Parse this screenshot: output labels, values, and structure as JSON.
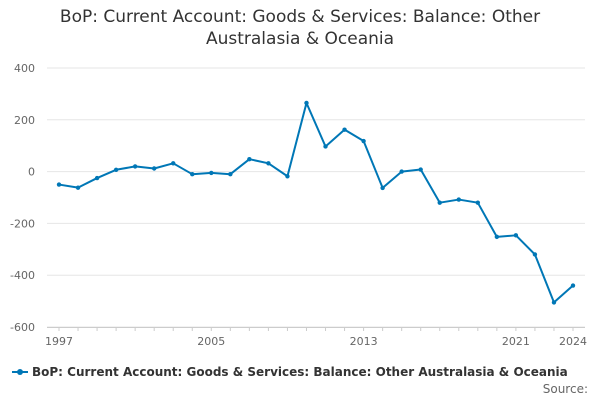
{
  "chart_data": {
    "type": "line",
    "title_lines": [
      "BoP: Current Account: Goods & Services: Balance: Other",
      "Australasia & Oceania"
    ],
    "x": [
      1997,
      1998,
      1999,
      2000,
      2001,
      2002,
      2003,
      2004,
      2005,
      2006,
      2007,
      2008,
      2009,
      2010,
      2011,
      2012,
      2013,
      2014,
      2015,
      2016,
      2017,
      2018,
      2019,
      2020,
      2021,
      2022,
      2023,
      2024
    ],
    "x_tick_labels": [
      "1997",
      "2005",
      "2013",
      "2021",
      "2024"
    ],
    "x_tick_values": [
      1997,
      2005,
      2013,
      2021,
      2024
    ],
    "xlim": [
      1997,
      2024
    ],
    "series": [
      {
        "name": "BoP: Current Account: Goods & Services: Balance: Other Australasia & Oceania",
        "color": "#0077b6",
        "values": [
          -50,
          -62,
          -25,
          7,
          20,
          12,
          32,
          -10,
          -5,
          -10,
          48,
          32,
          -18,
          265,
          97,
          162,
          118,
          -63,
          0,
          8,
          -120,
          -108,
          -120,
          -252,
          -246,
          -320,
          -505,
          -440
        ]
      }
    ],
    "y_ticks": [
      -600,
      -400,
      -200,
      0,
      200,
      400
    ],
    "ylim": [
      -600,
      400
    ],
    "grid": "horizontal",
    "legend_position": "bottom",
    "source_label": "Source:"
  }
}
